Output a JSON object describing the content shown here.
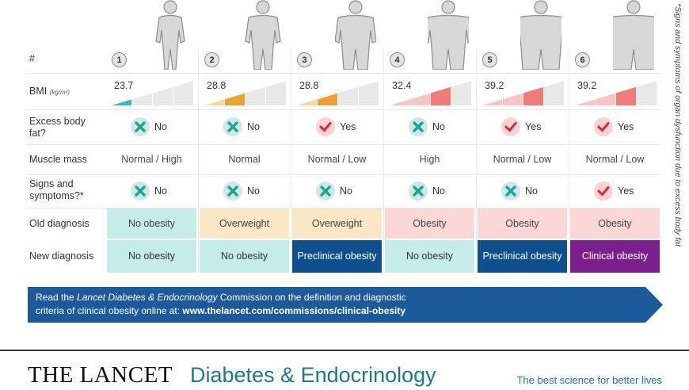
{
  "rows": {
    "hash": "#",
    "bmi": "BMI",
    "bmi_unit": "(kg/m²)",
    "excess_fat": "Excess body fat?",
    "muscle": "Muscle mass",
    "signs": "Signs and symptoms?*",
    "old_dx": "Old diagnosis",
    "new_dx": "New diagnosis"
  },
  "columns": [
    {
      "num": "1",
      "bmi": "23.7",
      "bmi_level": 1,
      "bmi_color": "#2bbfb2",
      "bmi_light": "#a8e4de",
      "fat": "No",
      "muscle": "Normal / High",
      "signs": "No",
      "old": "No obesity",
      "old_bg": "#c5ece8",
      "new": "No obesity",
      "new_bg": "#c5ece8",
      "new_fg": "#333333"
    },
    {
      "num": "2",
      "bmi": "28.8",
      "bmi_level": 2,
      "bmi_color": "#f0a030",
      "bmi_light": "#f8d6a0",
      "fat": "No",
      "muscle": "Normal",
      "signs": "No",
      "old": "Overweight",
      "old_bg": "#fbe6c6",
      "new": "No obesity",
      "new_bg": "#c5ece8",
      "new_fg": "#333333"
    },
    {
      "num": "3",
      "bmi": "28.8",
      "bmi_level": 2,
      "bmi_color": "#f0a030",
      "bmi_light": "#f8d6a0",
      "fat": "Yes",
      "muscle": "Normal / Low",
      "signs": "No",
      "old": "Overweight",
      "old_bg": "#fbe6c6",
      "new": "Preclinical obesity",
      "new_bg": "#0f4f8f",
      "new_fg": "#ffffff"
    },
    {
      "num": "4",
      "bmi": "32.4",
      "bmi_level": 3,
      "bmi_color": "#f07b78",
      "bmi_light": "#f9c3c1",
      "fat": "No",
      "muscle": "High",
      "signs": "No",
      "old": "Obesity",
      "old_bg": "#fbd8d6",
      "new": "No obesity",
      "new_bg": "#c5ece8",
      "new_fg": "#333333"
    },
    {
      "num": "5",
      "bmi": "39.2",
      "bmi_level": 3,
      "bmi_color": "#f07b78",
      "bmi_light": "#f9c3c1",
      "fat": "Yes",
      "muscle": "Normal / Low",
      "signs": "No",
      "old": "Obesity",
      "old_bg": "#fbd8d6",
      "new": "Preclinical obesity",
      "new_bg": "#0f4f8f",
      "new_fg": "#ffffff"
    },
    {
      "num": "6",
      "bmi": "39.2",
      "bmi_level": 3,
      "bmi_color": "#f07b78",
      "bmi_light": "#f9c3c1",
      "fat": "Yes",
      "muscle": "Normal / Low",
      "signs": "Yes",
      "old": "Obesity",
      "old_bg": "#fbd8d6",
      "new": "Clinical obesity",
      "new_bg": "#7b1f8f",
      "new_fg": "#ffffff"
    }
  ],
  "banner": {
    "line1_pre": "Read the ",
    "line1_italic": "Lancet Diabetes & Endocrinology",
    "line1_post": " Commission on the definition and diagnostic",
    "line2_pre": "criteria of clinical obesity online at: ",
    "line2_url": "www.thelancet.com/commissions/clinical-obesity",
    "color": "#1c5a9c"
  },
  "footer": {
    "lancet": "THE LANCET",
    "journal": "Diabetes & Endocrinology",
    "tagline": "The best science for better lives"
  },
  "side_note": "*Signs and symptoms of organ dysfunction due to excess body fat",
  "colors": {
    "no_circle": "#cde9e5",
    "no_mark": "#1aa596",
    "yes_circle": "#fbd3d3",
    "yes_mark": "#d8283a"
  }
}
